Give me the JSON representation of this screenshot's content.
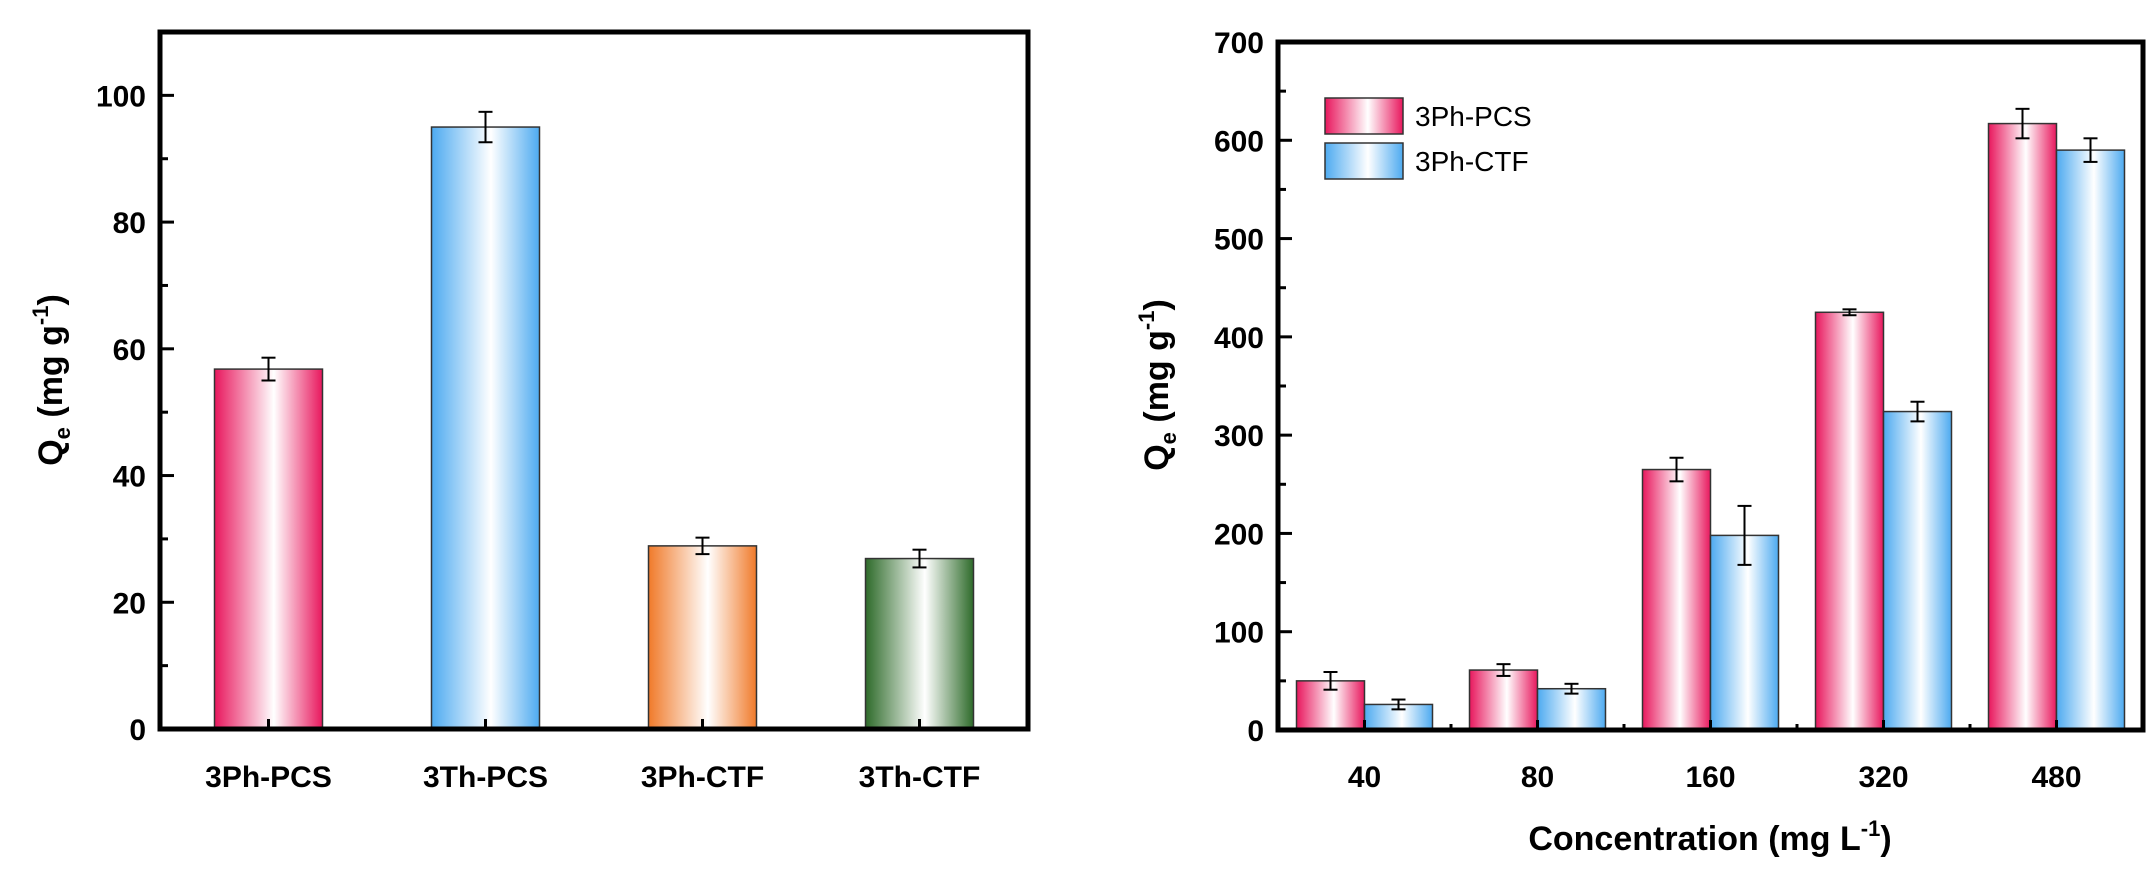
{
  "chart_data": [
    {
      "type": "bar",
      "categories": [
        "3Ph-PCS",
        "3Th-PCS",
        "3Ph-CTF",
        "3Th-CTF"
      ],
      "values": [
        56.8,
        95.0,
        28.9,
        26.9
      ],
      "errors": [
        1.8,
        2.4,
        1.3,
        1.4
      ],
      "bar_colors": [
        "#e8175d",
        "#4daaf0",
        "#f07a2a",
        "#2e6b2a"
      ],
      "ylabel": "Qe (mg g-1)",
      "ylabel_main": "Q",
      "ylabel_sub": "e",
      "ylabel_unit": " (mg g",
      "ylabel_exp": "-1",
      "ylabel_close": ")",
      "xlabel": "",
      "ylim": [
        0,
        110
      ],
      "yticks": [
        0,
        20,
        40,
        60,
        80,
        100
      ],
      "title": ""
    },
    {
      "type": "bar",
      "categories": [
        "40",
        "80",
        "160",
        "320",
        "480"
      ],
      "series": [
        {
          "name": "3Ph-PCS",
          "color": "#e8175d",
          "values": [
            50,
            61,
            265,
            425,
            617
          ],
          "errors": [
            9,
            6,
            12,
            3,
            15
          ]
        },
        {
          "name": "3Ph-CTF",
          "color": "#4daaf0",
          "values": [
            26,
            42,
            198,
            324,
            590
          ],
          "errors": [
            5,
            5,
            30,
            10,
            12
          ]
        }
      ],
      "ylabel": "Qe (mg g-1)",
      "ylabel_main": "Q",
      "ylabel_sub": "e",
      "ylabel_unit": " (mg g",
      "ylabel_exp": "-1",
      "ylabel_close": ")",
      "xlabel": "Concentration (mg L-1)",
      "xlabel_main": "Concentration (mg L",
      "xlabel_exp": "-1",
      "xlabel_close": ")",
      "ylim": [
        0,
        700
      ],
      "yticks": [
        0,
        100,
        200,
        300,
        400,
        500,
        600,
        700
      ],
      "legend_position": "top-left",
      "title": ""
    }
  ]
}
